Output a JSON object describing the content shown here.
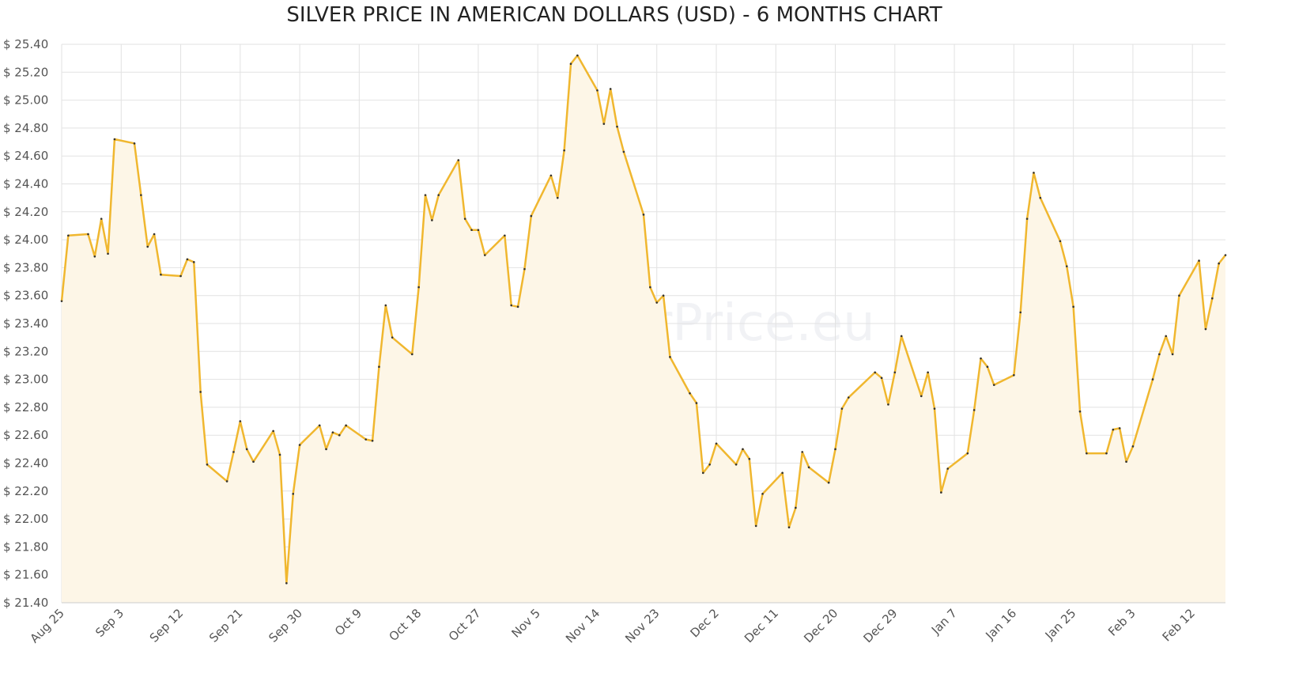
{
  "chart_data": {
    "type": "line",
    "title": "SILVER PRICE IN AMERICAN DOLLARS (USD) - 6 MONTHS CHART",
    "watermark": "GoldSilverPrice.eu",
    "color": "#f0b72f",
    "fill": "#fdf6e7",
    "grid": true,
    "x": [
      "Aug 25",
      "Aug 26",
      "Aug 29",
      "Aug 30",
      "Aug 31",
      "Sep 1",
      "Sep 2",
      "Sep 5",
      "Sep 6",
      "Sep 7",
      "Sep 8",
      "Sep 9",
      "Sep 12",
      "Sep 13",
      "Sep 14",
      "Sep 15",
      "Sep 16",
      "Sep 19",
      "Sep 20",
      "Sep 21",
      "Sep 22",
      "Sep 23",
      "Sep 26",
      "Sep 27",
      "Sep 28",
      "Sep 29",
      "Sep 30",
      "Oct 3",
      "Oct 4",
      "Oct 5",
      "Oct 6",
      "Oct 7",
      "Oct 10",
      "Oct 11",
      "Oct 12",
      "Oct 13",
      "Oct 14",
      "Oct 17",
      "Oct 18",
      "Oct 19",
      "Oct 20",
      "Oct 21",
      "Oct 24",
      "Oct 25",
      "Oct 26",
      "Oct 27",
      "Oct 28",
      "Oct 31",
      "Nov 1",
      "Nov 2",
      "Nov 3",
      "Nov 4",
      "Nov 7",
      "Nov 8",
      "Nov 9",
      "Nov 10",
      "Nov 11",
      "Nov 14",
      "Nov 15",
      "Nov 16",
      "Nov 17",
      "Nov 18",
      "Nov 21",
      "Nov 22",
      "Nov 23",
      "Nov 24",
      "Nov 25",
      "Nov 28",
      "Nov 29",
      "Nov 30",
      "Dec 1",
      "Dec 2",
      "Dec 5",
      "Dec 6",
      "Dec 7",
      "Dec 8",
      "Dec 9",
      "Dec 12",
      "Dec 13",
      "Dec 14",
      "Dec 15",
      "Dec 16",
      "Dec 19",
      "Dec 20",
      "Dec 21",
      "Dec 22",
      "Dec 26",
      "Dec 27",
      "Dec 28",
      "Dec 29",
      "Dec 30",
      "Jan 2",
      "Jan 3",
      "Jan 4",
      "Jan 5",
      "Jan 6",
      "Jan 9",
      "Jan 10",
      "Jan 11",
      "Jan 12",
      "Jan 13",
      "Jan 16",
      "Jan 17",
      "Jan 18",
      "Jan 19",
      "Jan 20",
      "Jan 23",
      "Jan 24",
      "Jan 25",
      "Jan 26",
      "Jan 27",
      "Jan 30",
      "Jan 31",
      "Feb 1",
      "Feb 2",
      "Feb 3",
      "Feb 6",
      "Feb 7",
      "Feb 8",
      "Feb 9",
      "Feb 10",
      "Feb 13",
      "Feb 14",
      "Feb 15",
      "Feb 16",
      "Feb 17"
    ],
    "values": [
      23.56,
      24.03,
      24.04,
      23.88,
      24.15,
      23.9,
      24.72,
      24.69,
      24.32,
      23.95,
      24.04,
      23.75,
      23.74,
      23.86,
      23.84,
      22.91,
      22.39,
      22.27,
      22.48,
      22.7,
      22.5,
      22.41,
      22.63,
      22.46,
      21.54,
      22.18,
      22.53,
      22.67,
      22.5,
      22.62,
      22.6,
      22.67,
      22.57,
      22.56,
      23.09,
      23.53,
      23.3,
      23.18,
      23.66,
      24.32,
      24.14,
      24.32,
      24.57,
      24.15,
      24.07,
      24.07,
      23.89,
      24.03,
      23.53,
      23.52,
      23.79,
      24.17,
      24.46,
      24.3,
      24.64,
      25.26,
      25.32,
      25.07,
      24.83,
      25.08,
      24.81,
      24.63,
      24.18,
      23.66,
      23.55,
      23.6,
      23.16,
      22.9,
      22.83,
      22.33,
      22.39,
      22.54,
      22.39,
      22.5,
      22.43,
      21.95,
      22.18,
      22.33,
      21.94,
      22.08,
      22.48,
      22.37,
      22.26,
      22.5,
      22.79,
      22.87,
      23.05,
      23.01,
      22.82,
      23.05,
      23.31,
      22.88,
      23.05,
      22.79,
      22.19,
      22.36,
      22.47,
      22.78,
      23.15,
      23.09,
      22.96,
      23.03,
      23.48,
      24.15,
      24.48,
      24.3,
      23.99,
      23.81,
      23.52,
      22.77,
      22.47,
      22.47,
      22.64,
      22.65,
      22.41,
      22.52,
      23.0,
      23.18,
      23.31,
      23.18,
      23.6,
      23.85,
      23.36,
      23.58,
      23.83,
      23.89
    ],
    "xlim": [
      "Aug 25",
      "Feb 17"
    ],
    "xticks": [
      "Aug 25",
      "Sep 3",
      "Sep 12",
      "Sep 21",
      "Sep 30",
      "Oct 9",
      "Oct 18",
      "Oct 27",
      "Nov 5",
      "Nov 14",
      "Nov 23",
      "Dec 2",
      "Dec 11",
      "Dec 20",
      "Dec 29",
      "Jan 7",
      "Jan 16",
      "Jan 25",
      "Feb 3",
      "Feb 12"
    ],
    "ylim": [
      21.4,
      25.4
    ],
    "yticks": [
      {
        "value": 21.4,
        "label": "$ 21.40"
      },
      {
        "value": 21.6,
        "label": "$ 21.60"
      },
      {
        "value": 21.8,
        "label": "$ 21.80"
      },
      {
        "value": 22.0,
        "label": "$ 22.00"
      },
      {
        "value": 22.2,
        "label": "$ 22.20"
      },
      {
        "value": 22.4,
        "label": "$ 22.40"
      },
      {
        "value": 22.6,
        "label": "$ 22.60"
      },
      {
        "value": 22.8,
        "label": "$ 22.80"
      },
      {
        "value": 23.0,
        "label": "$ 23.00"
      },
      {
        "value": 23.2,
        "label": "$ 23.20"
      },
      {
        "value": 23.4,
        "label": "$ 23.40"
      },
      {
        "value": 23.6,
        "label": "$ 23.60"
      },
      {
        "value": 23.8,
        "label": "$ 23.80"
      },
      {
        "value": 24.0,
        "label": "$ 24.00"
      },
      {
        "value": 24.2,
        "label": "$ 24.20"
      },
      {
        "value": 24.4,
        "label": "$ 24.40"
      },
      {
        "value": 24.6,
        "label": "$ 24.60"
      },
      {
        "value": 24.8,
        "label": "$ 24.80"
      },
      {
        "value": 25.0,
        "label": "$ 25.00"
      },
      {
        "value": 25.2,
        "label": "$ 25.20"
      },
      {
        "value": 25.4,
        "label": "$ 25.40"
      }
    ]
  }
}
